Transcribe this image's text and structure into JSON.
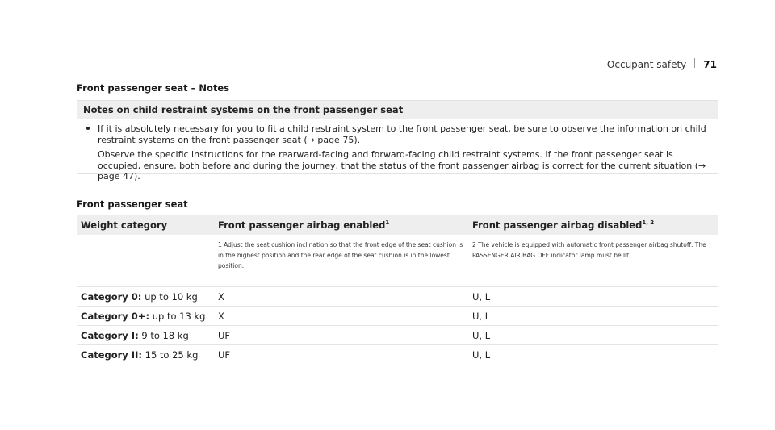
{
  "header": {
    "section": "Occupant safety",
    "page_number": "71"
  },
  "notes_section": {
    "title": "Front passenger seat – Notes",
    "box_heading": "Notes on child restraint systems on the front passenger seat",
    "paragraph1": "If it is absolutely necessary for you to fit a child restraint system to the front passenger seat, be sure to observe the information on child restraint systems on the front passenger seat (→ page 75).",
    "paragraph2": "Observe the specific instructions for the rearward-facing and forward-facing child restraint systems. If the front passenger seat is occupied, ensure, both before and during the journey, that the status of the front passenger airbag is correct for the current situation (→ page 47)."
  },
  "seat_table": {
    "title": "Front passenger seat",
    "headers": {
      "weight": "Weight category",
      "enabled": "Front passenger airbag enabled",
      "enabled_sup": "1",
      "disabled": "Front passenger airbag disabled",
      "disabled_sup": "1, 2"
    },
    "footnotes": {
      "note1": "1 Adjust the seat cushion inclination so that the front edge of the seat cushion is in the highest position and the rear edge of the seat cushion is in the lowest position.",
      "note2": "2 The vehicle is equipped with automatic front passenger airbag shutoff. The PASSENGER AIR BAG OFF indicator lamp must be lit."
    },
    "rows": [
      {
        "category": "Category 0:",
        "weight": "up to 10 kg",
        "enabled": "X",
        "disabled": "U, L"
      },
      {
        "category": "Category 0+:",
        "weight": "up to 13 kg",
        "enabled": "X",
        "disabled": "U, L"
      },
      {
        "category": "Category I:",
        "weight": "9 to 18 kg",
        "enabled": "UF",
        "disabled": "U, L"
      },
      {
        "category": "Category II:",
        "weight": "15 to 25 kg",
        "enabled": "UF",
        "disabled": "U, L"
      }
    ]
  }
}
